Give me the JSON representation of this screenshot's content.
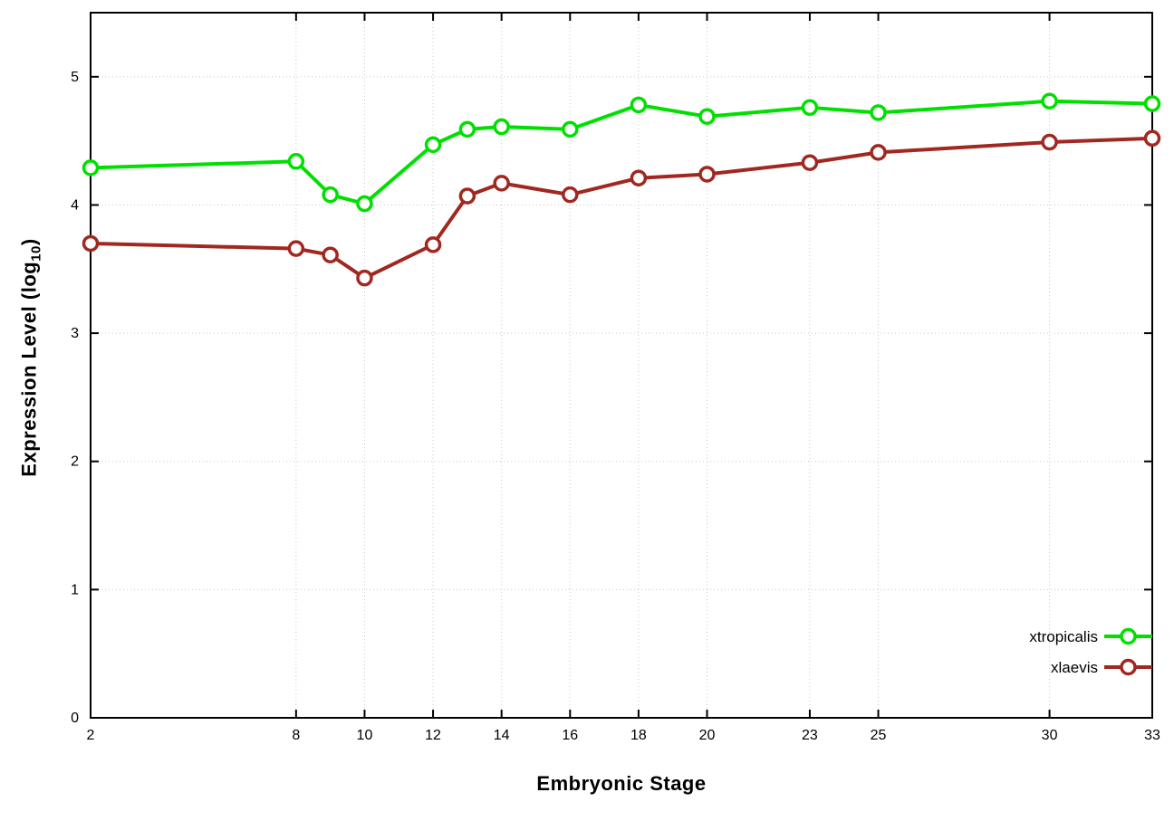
{
  "chart_data": {
    "type": "line",
    "title": "",
    "xlabel": "Embryonic Stage",
    "ylabel": {
      "prefix": "Expression Level (log",
      "sub": "10",
      "suffix": ")",
      "text": "Expression Level (log10)"
    },
    "xlim": [
      2,
      33
    ],
    "ylim": [
      0,
      5.5
    ],
    "xticks": [
      2,
      8,
      10,
      12,
      14,
      16,
      18,
      20,
      23,
      25,
      30,
      33
    ],
    "yticks": [
      0,
      1,
      2,
      3,
      4,
      5
    ],
    "grid": true,
    "grid_color": "#c8c8c8",
    "border_color": "#000000",
    "legend_position": "bottom-right-inside",
    "marker": "open-circle",
    "x": [
      2,
      8,
      9,
      10,
      12,
      13,
      14,
      16,
      18,
      20,
      23,
      25,
      30,
      33
    ],
    "series": [
      {
        "name": "xtropicalis",
        "color": "#00e000",
        "values": [
          4.29,
          4.34,
          4.08,
          4.01,
          4.47,
          4.59,
          4.61,
          4.59,
          4.78,
          4.69,
          4.76,
          4.72,
          4.81,
          4.79
        ]
      },
      {
        "name": "xlaevis",
        "color": "#a02820",
        "values": [
          3.7,
          3.66,
          3.61,
          3.43,
          3.69,
          4.07,
          4.17,
          4.08,
          4.21,
          4.24,
          4.33,
          4.41,
          4.49,
          4.52
        ]
      }
    ]
  }
}
